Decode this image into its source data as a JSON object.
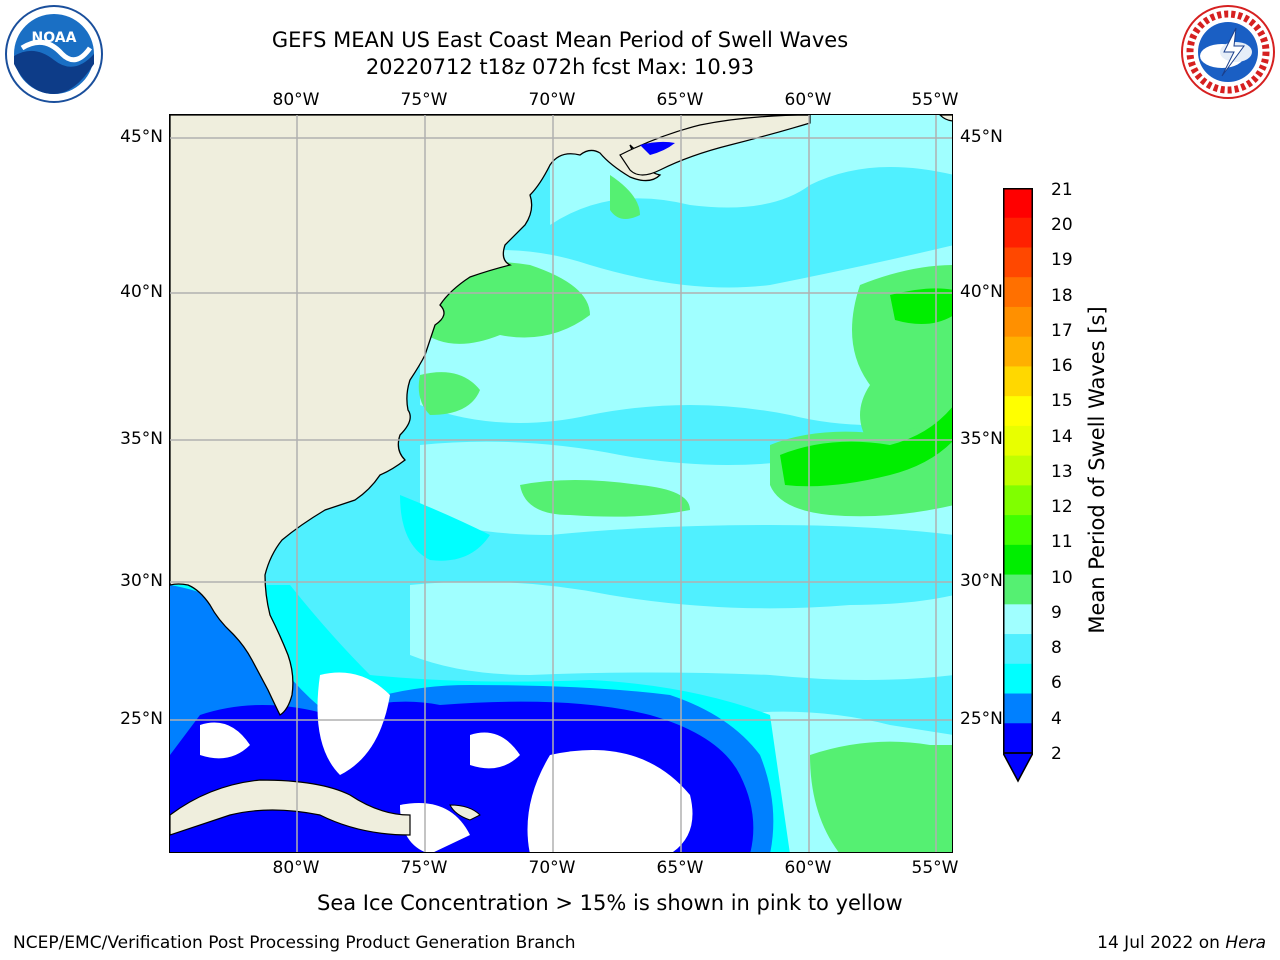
{
  "title": {
    "line1": "GEFS MEAN US East Coast Mean Period of Swell Waves",
    "line2": "20220712 t18z 072h fcst   Max: 10.93"
  },
  "map": {
    "lon_labels": [
      "80°W",
      "75°W",
      "70°W",
      "65°W",
      "60°W",
      "55°W"
    ],
    "lat_labels": [
      "45°N",
      "40°N",
      "35°N",
      "30°N",
      "25°N"
    ],
    "extent": {
      "lon_min": -85,
      "lon_max": -54.2,
      "lat_min": 20.4,
      "lat_max": 45.8
    },
    "colors": {
      "land": "#efeedd",
      "no_data": "#ffffff",
      "grid": "#b0b0b0",
      "coast": "#000000"
    },
    "logos": [
      "noaa-logo",
      "nws-logo"
    ]
  },
  "colorbar": {
    "label": "Mean Period of Swell Waves [s]",
    "ticks": [
      "21",
      "20",
      "19",
      "18",
      "17",
      "16",
      "15",
      "14",
      "13",
      "12",
      "11",
      "10",
      "9",
      "8",
      "6",
      "4",
      "2"
    ],
    "colors": [
      "#ff0000",
      "#ff2000",
      "#ff4800",
      "#ff7000",
      "#ff9000",
      "#ffb000",
      "#ffd800",
      "#ffff00",
      "#e8ff00",
      "#c0ff00",
      "#80ff00",
      "#40ff00",
      "#00ee00",
      "#55f072",
      "#a0ffff",
      "#50f0ff",
      "#00ffff",
      "#0080ff",
      "#0000ff"
    ],
    "extend_color": "#0000ff"
  },
  "footnote": "Sea Ice Concentration > 15% is shown in pink to yellow",
  "footer": {
    "left": "NCEP/EMC/Verification Post Processing Product Generation Branch",
    "right_date": "14 Jul 2022 on",
    "right_host": "Hera"
  }
}
